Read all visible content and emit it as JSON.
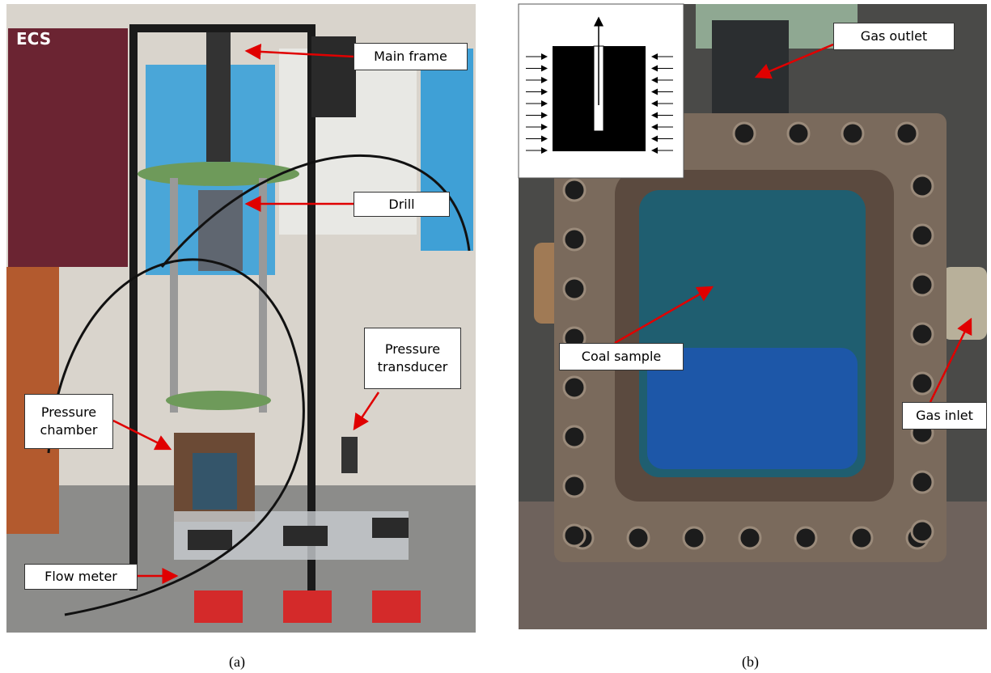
{
  "panels": [
    {
      "caption": "(a)",
      "labels": [
        "Main frame",
        "Drill",
        "Pressure transducer",
        "Pressure chamber",
        "Flow meter"
      ]
    },
    {
      "caption": "(b)",
      "labels": [
        "Gas outlet",
        "Coal sample",
        "Gas inlet"
      ]
    }
  ]
}
